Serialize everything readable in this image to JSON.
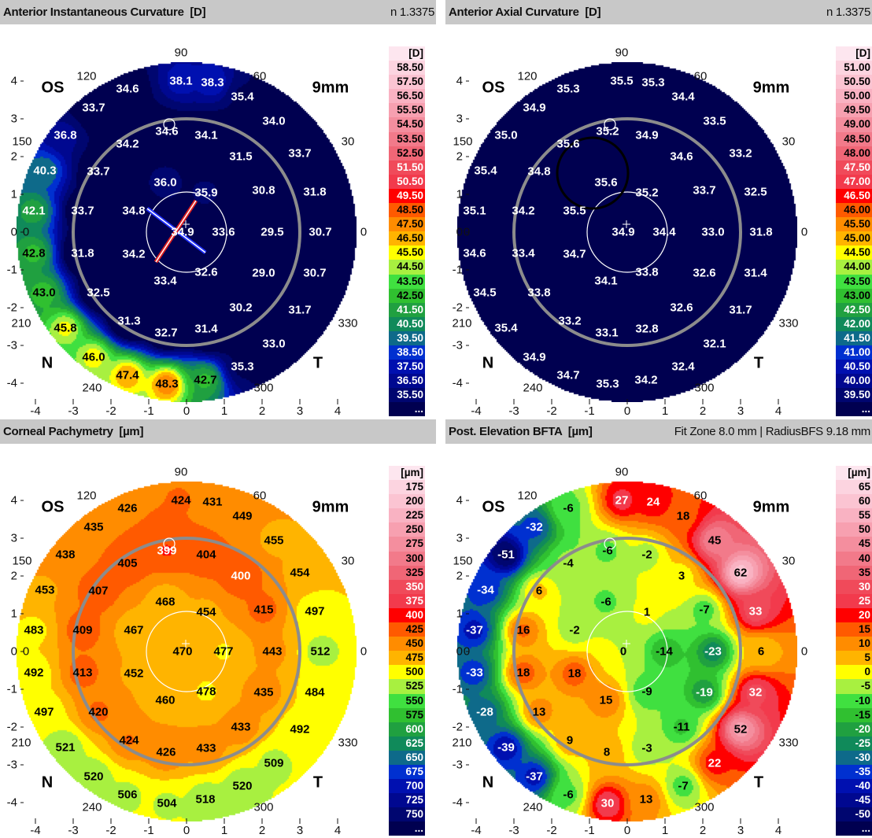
{
  "palette": [
    "#fcd4e0",
    "#fbc4d2",
    "#f9b2c2",
    "#f7a0b0",
    "#f48e9e",
    "#f27a8a",
    "#f06676",
    "#f04a5a",
    "#f23a4c",
    "#ff0000",
    "#ff5a00",
    "#ff8c00",
    "#ffb400",
    "#ffff00",
    "#a8f040",
    "#40e040",
    "#30c030",
    "#20a040",
    "#108a5a",
    "#0e6a8a",
    "#0030d0",
    "#0010b0",
    "#000890",
    "#000670",
    "#000050"
  ],
  "scale_header_color": "#fde6ef",
  "axes": {
    "angles": [
      "90",
      "120",
      "60",
      "150",
      "30",
      "0",
      "0",
      "210",
      "330",
      "240",
      "300"
    ],
    "xticks": [
      "-4",
      "-3",
      "-2",
      "-1",
      "0",
      "1",
      "2",
      "3",
      "4"
    ],
    "yticks": [
      "4",
      "3",
      "2",
      "1",
      "0",
      "-1",
      "-2",
      "-3",
      "-4"
    ]
  },
  "panels": [
    {
      "title": "Anterior Instantaneous Curvature  [D]",
      "info": "n 1.3375",
      "eye": "OS",
      "zone": "9mm",
      "nasal": "N",
      "temporal": "T",
      "scale": {
        "unit": "[D]",
        "more": "...",
        "values": [
          "58.50",
          "57.50",
          "56.50",
          "55.50",
          "54.50",
          "53.50",
          "52.50",
          "51.50",
          "50.50",
          "49.50",
          "48.50",
          "47.50",
          "46.50",
          "45.50",
          "44.50",
          "43.50",
          "42.50",
          "41.50",
          "40.50",
          "39.50",
          "38.50",
          "37.50",
          "36.50",
          "35.50"
        ]
      },
      "values": [
        "38.1",
        "38.3",
        "34.6",
        "35.4",
        "33.7",
        "34.0",
        "36.8",
        "34.6",
        "34.1",
        "34.2",
        "33.7",
        "31.5",
        "40.3",
        "33.7",
        "36.0",
        "35.9",
        "30.8",
        "31.8",
        "42.1",
        "33.7",
        "34.8",
        "34.9",
        "33.6",
        "29.5",
        "30.7",
        "42.8",
        "31.8",
        "34.2",
        "32.6",
        "33.4",
        "29.0",
        "30.7",
        "43.0",
        "32.5",
        "30.2",
        "31.7",
        "31.3",
        "32.7",
        "31.4",
        "45.8",
        "33.0",
        "46.0",
        "35.3",
        "47.4",
        "48.3",
        "42.7"
      ]
    },
    {
      "title": "Anterior Axial Curvature  [D]",
      "info": "n 1.3375",
      "eye": "OS",
      "zone": "9mm",
      "nasal": "N",
      "temporal": "T",
      "scale": {
        "unit": "[D]",
        "more": "...",
        "values": [
          "51.00",
          "50.50",
          "50.00",
          "49.50",
          "49.00",
          "48.50",
          "48.00",
          "47.50",
          "47.00",
          "46.50",
          "46.00",
          "45.50",
          "45.00",
          "44.50",
          "44.00",
          "43.50",
          "43.00",
          "42.50",
          "42.00",
          "41.50",
          "41.00",
          "40.50",
          "40.00",
          "39.50"
        ]
      },
      "values": [
        "35.5",
        "35.3",
        "35.3",
        "34.4",
        "34.9",
        "33.5",
        "35.0",
        "35.2",
        "34.9",
        "35.6",
        "33.2",
        "34.6",
        "35.4",
        "34.8",
        "35.6",
        "35.2",
        "33.7",
        "32.5",
        "35.1",
        "34.2",
        "35.5",
        "34.9",
        "34.4",
        "33.0",
        "31.8",
        "34.6",
        "33.4",
        "34.7",
        "33.8",
        "34.1",
        "32.6",
        "31.4",
        "34.5",
        "33.8",
        "32.6",
        "31.7",
        "33.2",
        "33.1",
        "32.8",
        "35.4",
        "32.1",
        "34.9",
        "32.4",
        "34.7",
        "35.3",
        "34.2"
      ]
    },
    {
      "title": "Corneal Pachymetry  [µm]",
      "info": "",
      "eye": "OS",
      "zone": "9mm",
      "nasal": "N",
      "temporal": "T",
      "scale": {
        "unit": "[µm]",
        "more": "...",
        "values": [
          "175",
          "200",
          "225",
          "250",
          "275",
          "300",
          "325",
          "350",
          "375",
          "400",
          "425",
          "450",
          "475",
          "500",
          "525",
          "550",
          "575",
          "600",
          "625",
          "650",
          "675",
          "700",
          "725",
          "750"
        ]
      },
      "values": [
        "424",
        "431",
        "426",
        "449",
        "435",
        "455",
        "438",
        "399",
        "404",
        "405",
        "454",
        "400",
        "453",
        "407",
        "468",
        "454",
        "415",
        "497",
        "483",
        "409",
        "467",
        "470",
        "477",
        "443",
        "512",
        "492",
        "413",
        "452",
        "478",
        "460",
        "435",
        "484",
        "497",
        "420",
        "433",
        "492",
        "424",
        "426",
        "433",
        "521",
        "509",
        "520",
        "520",
        "506",
        "504",
        "518"
      ]
    },
    {
      "title": "Post. Elevation BFTA  [µm]",
      "info": "Fit Zone 8.0 mm | RadiusBFS 9.18 mm",
      "eye": "OS",
      "zone": "9mm",
      "nasal": "N",
      "temporal": "T",
      "scale": {
        "unit": "[µm]",
        "more": "...",
        "values": [
          "65",
          "60",
          "55",
          "50",
          "45",
          "40",
          "35",
          "30",
          "25",
          "20",
          "15",
          "10",
          "5",
          "0",
          "-5",
          "-10",
          "-15",
          "-20",
          "-25",
          "-30",
          "-35",
          "-40",
          "-45",
          "-50"
        ]
      },
      "values": [
        "27",
        "24",
        "-6",
        "18",
        "-32",
        "45",
        "-51",
        "-6",
        "-2",
        "-4",
        "62",
        "3",
        "-34",
        "6",
        "-6",
        "1",
        "-7",
        "33",
        "-37",
        "16",
        "-2",
        "0",
        "-14",
        "-23",
        "6",
        "-33",
        "18",
        "18",
        "-9",
        "15",
        "-19",
        "32",
        "-28",
        "13",
        "-11",
        "52",
        "9",
        "8",
        "-3",
        "-39",
        "22",
        "-37",
        "-7",
        "-6",
        "30",
        "13"
      ]
    }
  ]
}
